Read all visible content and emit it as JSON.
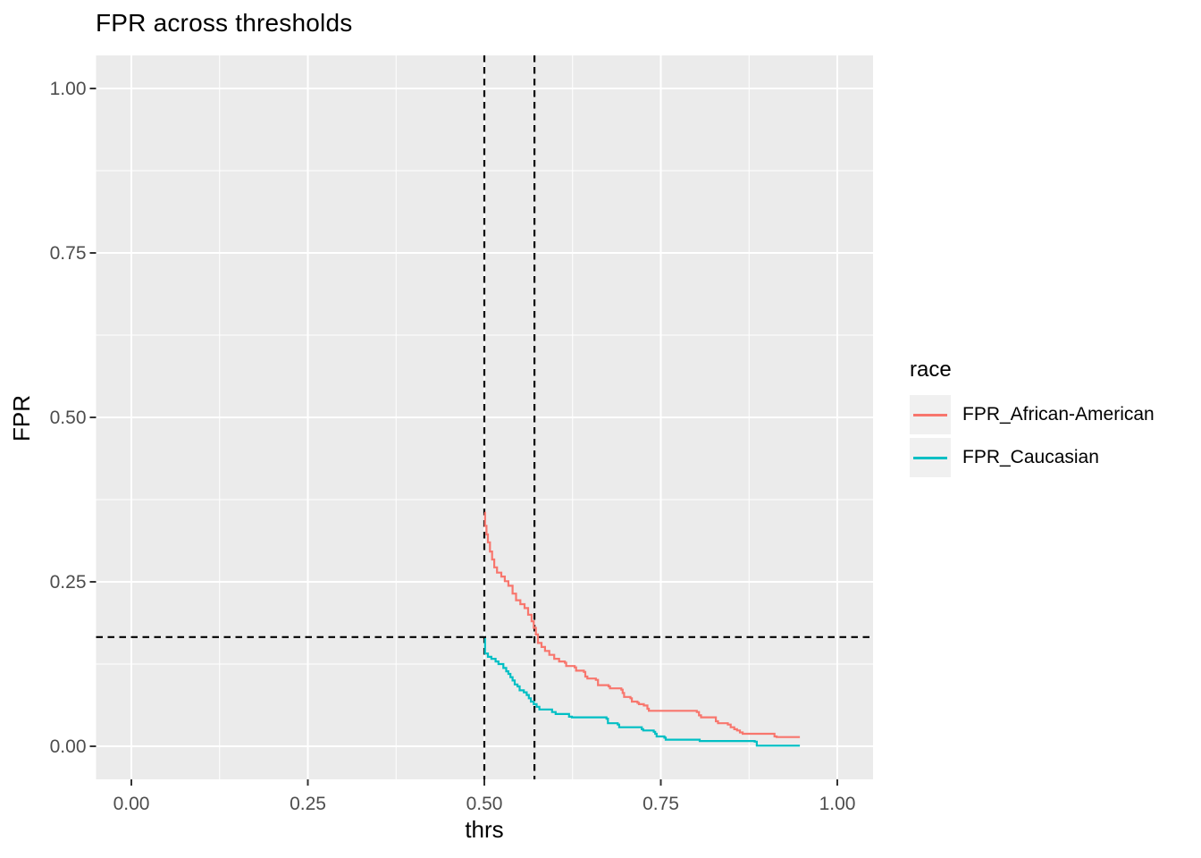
{
  "figure": {
    "title": "FPR across thresholds"
  },
  "axes": {
    "x": {
      "title": "thrs",
      "tick_labels": [
        "0.00",
        "0.25",
        "0.50",
        "0.75",
        "1.00"
      ],
      "tick_values": [
        0,
        0.25,
        0.5,
        0.75,
        1
      ]
    },
    "y": {
      "title": "FPR",
      "tick_labels": [
        "0.00",
        "0.25",
        "0.50",
        "0.75",
        "1.00"
      ],
      "tick_values": [
        0,
        0.25,
        0.5,
        0.75,
        1
      ]
    }
  },
  "legend": {
    "title": "race",
    "entries": [
      {
        "label": "FPR_African-American",
        "color": "#F8766D"
      },
      {
        "label": "FPR_Caucasian",
        "color": "#00BFC4"
      }
    ]
  },
  "chart_data": {
    "type": "line",
    "subtype": "step",
    "title": "FPR across thresholds",
    "xlabel": "thrs",
    "ylabel": "FPR",
    "xlim": [
      -0.05,
      1.05
    ],
    "ylim": [
      -0.05,
      1.05
    ],
    "x_ticks": [
      0,
      0.25,
      0.5,
      0.75,
      1
    ],
    "y_ticks": [
      0,
      0.25,
      0.5,
      0.75,
      1
    ],
    "grid": {
      "major": [
        0,
        0.25,
        0.5,
        0.75,
        1
      ],
      "minor": [
        0.125,
        0.375,
        0.625,
        0.875
      ]
    },
    "legend_position": "right",
    "legend_title": "race",
    "series": [
      {
        "name": "FPR_African-American",
        "color": "#F8766D",
        "points": [
          [
            0.5,
            0.355
          ],
          [
            0.501,
            0.335
          ],
          [
            0.503,
            0.322
          ],
          [
            0.505,
            0.31
          ],
          [
            0.508,
            0.296
          ],
          [
            0.511,
            0.284
          ],
          [
            0.514,
            0.272
          ],
          [
            0.518,
            0.264
          ],
          [
            0.524,
            0.258
          ],
          [
            0.529,
            0.251
          ],
          [
            0.534,
            0.244
          ],
          [
            0.54,
            0.232
          ],
          [
            0.545,
            0.222
          ],
          [
            0.551,
            0.216
          ],
          [
            0.557,
            0.21
          ],
          [
            0.562,
            0.2
          ],
          [
            0.567,
            0.19
          ],
          [
            0.57,
            0.18
          ],
          [
            0.573,
            0.17
          ],
          [
            0.576,
            0.157
          ],
          [
            0.581,
            0.151
          ],
          [
            0.586,
            0.145
          ],
          [
            0.592,
            0.139
          ],
          [
            0.599,
            0.133
          ],
          [
            0.606,
            0.129
          ],
          [
            0.614,
            0.127
          ],
          [
            0.616,
            0.122
          ],
          [
            0.628,
            0.12
          ],
          [
            0.63,
            0.115
          ],
          [
            0.641,
            0.113
          ],
          [
            0.643,
            0.106
          ],
          [
            0.646,
            0.103
          ],
          [
            0.658,
            0.101
          ],
          [
            0.661,
            0.093
          ],
          [
            0.676,
            0.091
          ],
          [
            0.678,
            0.088
          ],
          [
            0.694,
            0.086
          ],
          [
            0.696,
            0.081
          ],
          [
            0.698,
            0.075
          ],
          [
            0.707,
            0.073
          ],
          [
            0.709,
            0.068
          ],
          [
            0.717,
            0.066
          ],
          [
            0.719,
            0.064
          ],
          [
            0.726,
            0.062
          ],
          [
            0.731,
            0.057
          ],
          [
            0.733,
            0.054
          ],
          [
            0.801,
            0.052
          ],
          [
            0.804,
            0.047
          ],
          [
            0.807,
            0.044
          ],
          [
            0.828,
            0.038
          ],
          [
            0.831,
            0.035
          ],
          [
            0.845,
            0.033
          ],
          [
            0.849,
            0.029
          ],
          [
            0.854,
            0.026
          ],
          [
            0.858,
            0.024
          ],
          [
            0.862,
            0.021
          ],
          [
            0.866,
            0.019
          ],
          [
            0.911,
            0.015
          ],
          [
            0.914,
            0.014
          ],
          [
            0.947,
            0.014
          ]
        ]
      },
      {
        "name": "FPR_Caucasian",
        "color": "#00BFC4",
        "points": [
          [
            0.5,
            0.163
          ],
          [
            0.501,
            0.141
          ],
          [
            0.505,
            0.136
          ],
          [
            0.51,
            0.133
          ],
          [
            0.516,
            0.129
          ],
          [
            0.52,
            0.125
          ],
          [
            0.527,
            0.119
          ],
          [
            0.531,
            0.114
          ],
          [
            0.534,
            0.11
          ],
          [
            0.537,
            0.105
          ],
          [
            0.54,
            0.1
          ],
          [
            0.543,
            0.094
          ],
          [
            0.547,
            0.091
          ],
          [
            0.55,
            0.085
          ],
          [
            0.556,
            0.082
          ],
          [
            0.56,
            0.078
          ],
          [
            0.563,
            0.073
          ],
          [
            0.566,
            0.068
          ],
          [
            0.57,
            0.064
          ],
          [
            0.574,
            0.06
          ],
          [
            0.578,
            0.056
          ],
          [
            0.596,
            0.052
          ],
          [
            0.601,
            0.049
          ],
          [
            0.62,
            0.045
          ],
          [
            0.624,
            0.044
          ],
          [
            0.673,
            0.042
          ],
          [
            0.675,
            0.035
          ],
          [
            0.689,
            0.033
          ],
          [
            0.691,
            0.029
          ],
          [
            0.723,
            0.026
          ],
          [
            0.725,
            0.024
          ],
          [
            0.74,
            0.022
          ],
          [
            0.742,
            0.019
          ],
          [
            0.744,
            0.015
          ],
          [
            0.755,
            0.013
          ],
          [
            0.757,
            0.01
          ],
          [
            0.805,
            0.008
          ],
          [
            0.883,
            0.007
          ],
          [
            0.886,
            0.001
          ],
          [
            0.947,
            0.001
          ]
        ]
      }
    ],
    "reference_lines": {
      "vlines": [
        0.5,
        0.571
      ],
      "hlines": [
        0.166
      ],
      "style": "dashed",
      "color": "#000000"
    }
  },
  "style": {
    "panel_bg": "#EBEBEB",
    "grid_color": "#FFFFFF",
    "tick_color": "#333333",
    "tick_label_color": "#4D4D4D",
    "text_color": "#000000",
    "legend_key_bg": "#F0F0F0",
    "page_bg": "#FFFFFF"
  }
}
